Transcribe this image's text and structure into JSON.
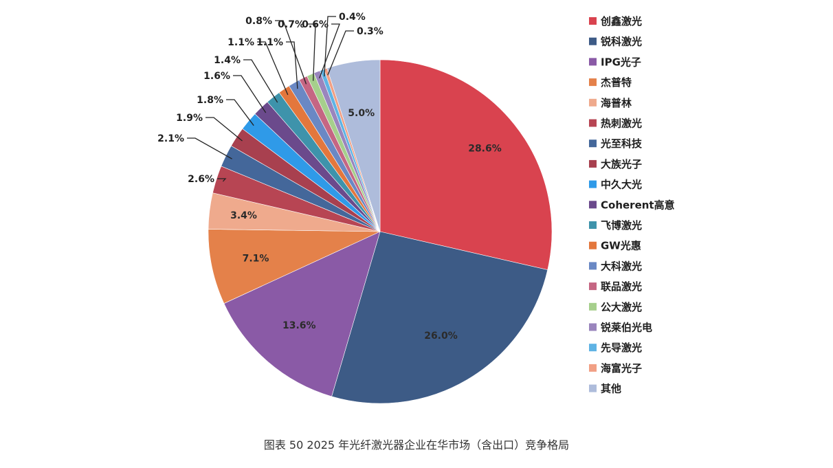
{
  "caption": "图表 50    2025 年光纤激光器企业在华市场（含出口）竞争格局",
  "chart_data": {
    "type": "pie",
    "title": "",
    "legend_position": "right",
    "slices": [
      {
        "name": "创鑫激光",
        "value": 28.6,
        "label": "28.6%",
        "color": "#d9434f"
      },
      {
        "name": "锐科激光",
        "value": 26.0,
        "label": "26.0%",
        "color": "#3d5b86"
      },
      {
        "name": "IPG光子",
        "value": 13.6,
        "label": "13.6%",
        "color": "#8a5aa6"
      },
      {
        "name": "杰普特",
        "value": 7.1,
        "label": "7.1%",
        "color": "#e4814a"
      },
      {
        "name": "海普林",
        "value": 3.4,
        "label": "3.4%",
        "color": "#efaa8d"
      },
      {
        "name": "热刺激光",
        "value": 2.6,
        "label": "2.6%",
        "color": "#b74553"
      },
      {
        "name": "光至科技",
        "value": 2.1,
        "label": "2.1%",
        "color": "#44679a"
      },
      {
        "name": "大族光子",
        "value": 1.9,
        "label": "1.9%",
        "color": "#a8404f"
      },
      {
        "name": "中久大光",
        "value": 1.8,
        "label": "1.8%",
        "color": "#2f9ae8"
      },
      {
        "name": "Coherent高意",
        "value": 1.6,
        "label": "1.6%",
        "color": "#6b4a8c"
      },
      {
        "name": "飞博激光",
        "value": 1.4,
        "label": "1.4%",
        "color": "#3e93ab"
      },
      {
        "name": "GW光惠",
        "value": 1.1,
        "label": "1.1%",
        "color": "#e3773d"
      },
      {
        "name": "大科激光",
        "value": 1.1,
        "label": "1.1%",
        "color": "#6a88c4"
      },
      {
        "name": "联品激光",
        "value": 0.8,
        "label": "0.8%",
        "color": "#c56683"
      },
      {
        "name": "公大激光",
        "value": 0.7,
        "label": "0.7%",
        "color": "#a6cf8c"
      },
      {
        "name": "锐莱伯光电",
        "value": 0.6,
        "label": "0.6%",
        "color": "#9a85bd"
      },
      {
        "name": "先导激光",
        "value": 0.4,
        "label": "0.4%",
        "color": "#5fb3e4"
      },
      {
        "name": "海富光子",
        "value": 0.3,
        "label": "0.3%",
        "color": "#f1a085"
      },
      {
        "name": "其他",
        "value": 5.0,
        "label": "5.0%",
        "color": "#aebcdb"
      }
    ]
  }
}
